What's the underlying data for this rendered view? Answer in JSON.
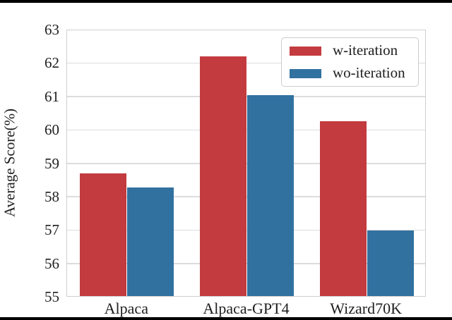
{
  "figure": {
    "type": "static-paper-figure",
    "background": "#ffffff",
    "rule_color": "#000000"
  },
  "chart_data": {
    "type": "bar",
    "title": "",
    "xlabel": "",
    "ylabel": "Average Score(%)",
    "categories": [
      "Alpaca",
      "Alpaca-GPT4",
      "Wizard70K"
    ],
    "series": [
      {
        "name": "w-iteration",
        "color": "#c33b3e",
        "values": [
          58.7,
          62.2,
          60.27
        ]
      },
      {
        "name": "wo-iteration",
        "color": "#31719f",
        "values": [
          58.28,
          61.05,
          57.0
        ]
      }
    ],
    "ylim": [
      55,
      63
    ],
    "yticks": [
      55,
      56,
      57,
      58,
      59,
      60,
      61,
      62,
      63
    ],
    "grid": true,
    "grid_color": "#dcdcdc",
    "spine_color": "#cfcfcf",
    "text_color": "#1f1f1f",
    "legend_position": "upper right",
    "legend_labels": [
      "w-iteration",
      "wo-iteration"
    ]
  }
}
